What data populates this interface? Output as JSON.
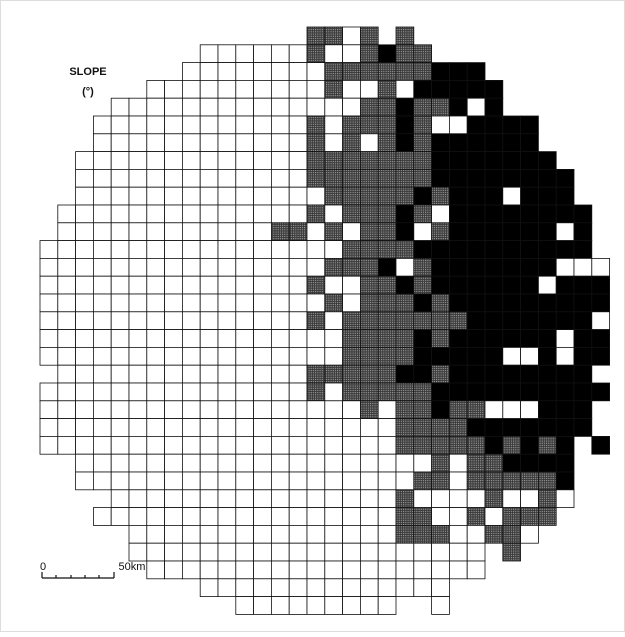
{
  "title": "SLOPE",
  "unit": "(°)",
  "scale_bar": {
    "start_label": "0",
    "end_label": "50km"
  }
}
